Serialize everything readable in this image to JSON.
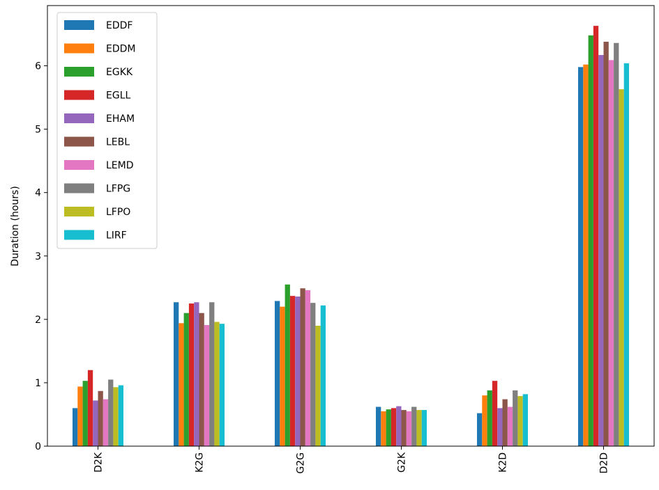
{
  "chart_data": {
    "type": "bar",
    "title": "",
    "xlabel": "",
    "ylabel": "Duration (hours)",
    "ylim": [
      0,
      6.95
    ],
    "yticks": [
      0,
      1,
      2,
      3,
      4,
      5,
      6
    ],
    "categories": [
      "D2K",
      "K2G",
      "G2G",
      "G2K",
      "K2D",
      "D2D"
    ],
    "legend_position": "top-left",
    "grid": false,
    "series": [
      {
        "name": "EDDF",
        "color": "#1f77b4",
        "values": [
          0.6,
          2.27,
          2.29,
          0.62,
          0.52,
          5.98
        ]
      },
      {
        "name": "EDDM",
        "color": "#ff7f0e",
        "values": [
          0.94,
          1.94,
          2.2,
          0.55,
          0.8,
          6.02
        ]
      },
      {
        "name": "EGKK",
        "color": "#2ca02c",
        "values": [
          1.03,
          2.1,
          2.55,
          0.58,
          0.88,
          6.48
        ]
      },
      {
        "name": "EGLL",
        "color": "#d62728",
        "values": [
          1.2,
          2.25,
          2.37,
          0.6,
          1.03,
          6.63
        ]
      },
      {
        "name": "EHAM",
        "color": "#9467bd",
        "values": [
          0.72,
          2.27,
          2.36,
          0.63,
          0.6,
          6.17
        ]
      },
      {
        "name": "LEBL",
        "color": "#8c564b",
        "values": [
          0.87,
          2.1,
          2.49,
          0.57,
          0.74,
          6.38
        ]
      },
      {
        "name": "LEMD",
        "color": "#e377c2",
        "values": [
          0.74,
          1.91,
          2.46,
          0.55,
          0.62,
          6.09
        ]
      },
      {
        "name": "LFPG",
        "color": "#7f7f7f",
        "values": [
          1.05,
          2.27,
          2.26,
          0.62,
          0.88,
          6.36
        ]
      },
      {
        "name": "LFPO",
        "color": "#bcbd22",
        "values": [
          0.93,
          1.96,
          1.9,
          0.57,
          0.79,
          5.63
        ]
      },
      {
        "name": "LIRF",
        "color": "#17becf",
        "values": [
          0.96,
          1.93,
          2.22,
          0.57,
          0.82,
          6.04
        ]
      }
    ]
  }
}
